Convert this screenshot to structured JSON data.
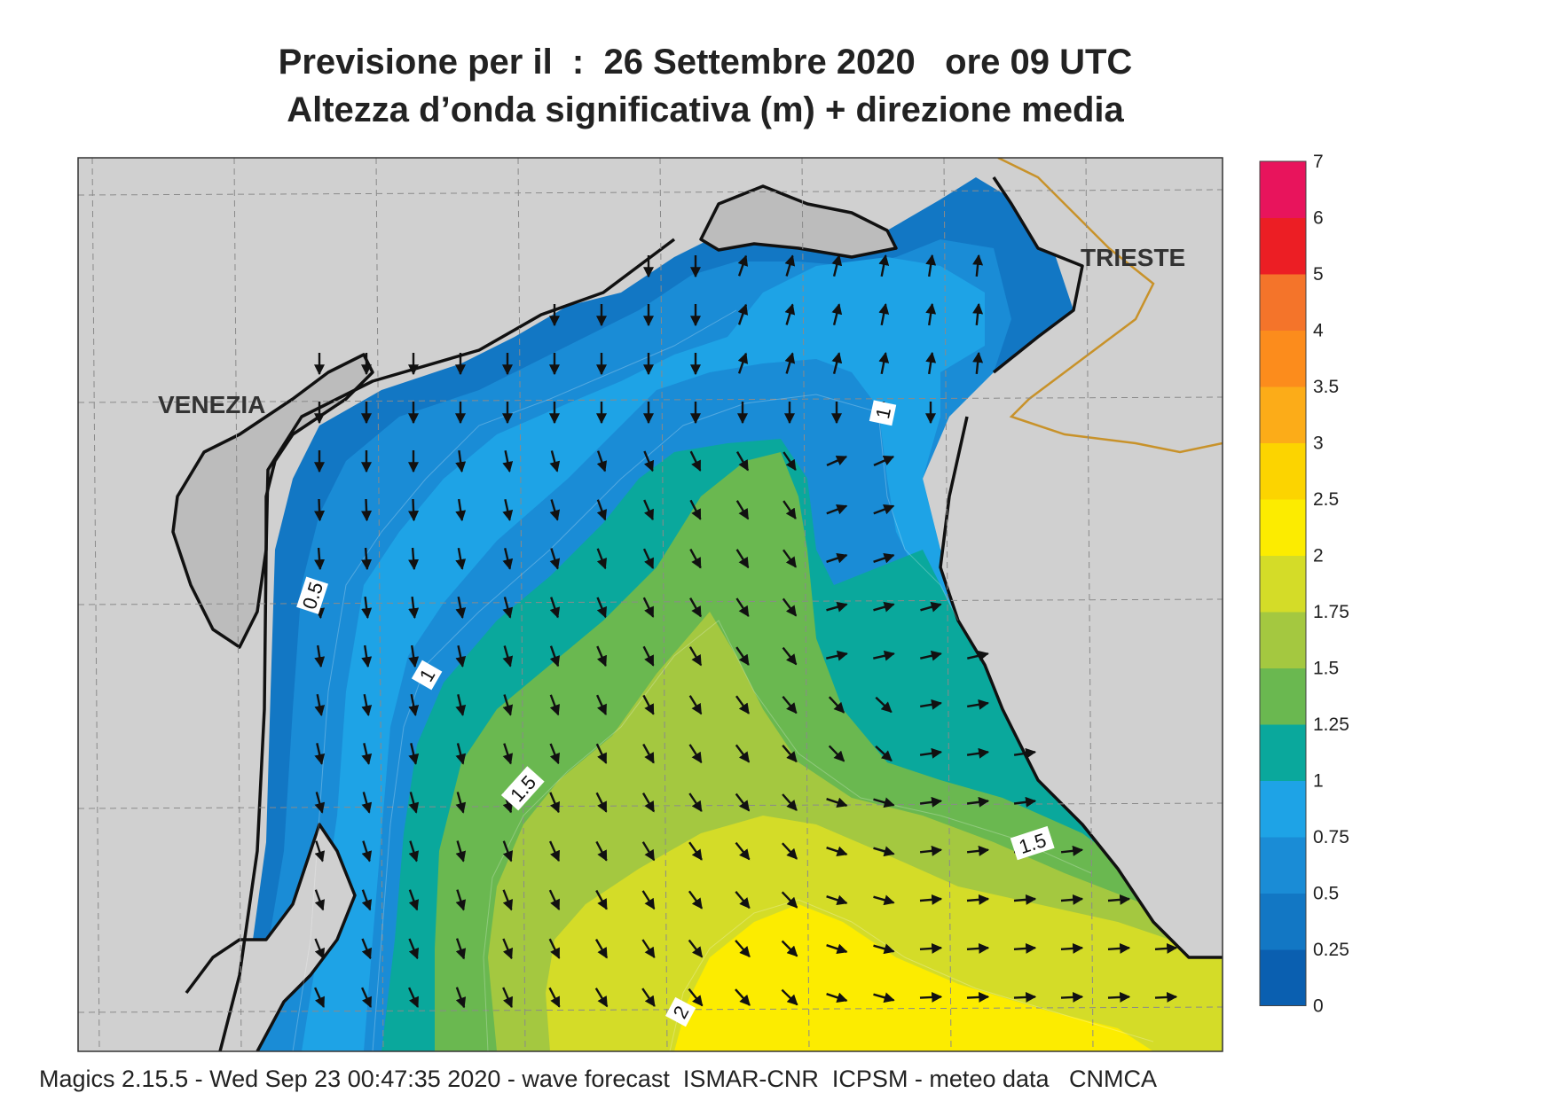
{
  "title": {
    "line1": "Previsione per il  :  26 Settembre 2020   ore 09 UTC",
    "line2": "Altezza d’onda significativa (m) + direzione media"
  },
  "cities": [
    {
      "name": "VENEZIA"
    },
    {
      "name": "TRIESTE"
    }
  ],
  "contour_labels": [
    "0.5",
    "1",
    "1.5",
    "1.5",
    "1",
    "2"
  ],
  "legend": {
    "levels": [
      "0",
      "0.25",
      "0.5",
      "0.75",
      "1",
      "1.25",
      "1.5",
      "1.75",
      "2",
      "2.5",
      "3",
      "3.5",
      "4",
      "5",
      "6",
      "7"
    ],
    "colors": [
      "#0a5fb0",
      "#1277c4",
      "#1a8cd6",
      "#1ea3e6",
      "#0aa89c",
      "#6ab850",
      "#a4c840",
      "#d4dc28",
      "#fcec00",
      "#fcd400",
      "#fcac18",
      "#fc8c1c",
      "#f4742a",
      "#ec1e24",
      "#e8145c"
    ]
  },
  "colors": {
    "land": "#d0d0d0",
    "lagoon_land": "#bcbcbc",
    "coast": "#111111",
    "border": "#c8922a",
    "grid": "#8a8a8a"
  },
  "footer": "Magics 2.15.5 - Wed Sep 23 00:47:35 2020 - wave forecast  ISMAR-CNR  ICPSM - meteo data   CNMCA"
}
